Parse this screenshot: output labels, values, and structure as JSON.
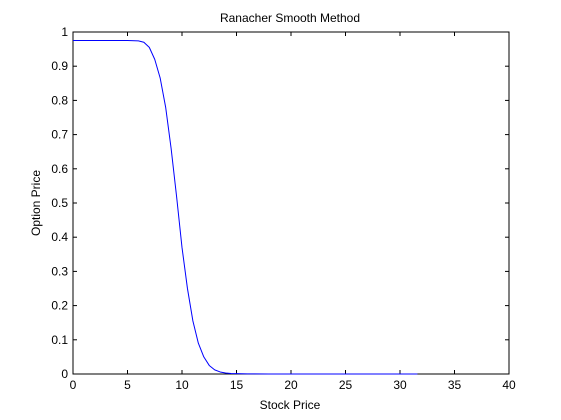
{
  "chart_data": {
    "type": "line",
    "title": "Ranacher Smooth Method",
    "xlabel": "Stock Price",
    "ylabel": "Option Price",
    "xlim": [
      0,
      40
    ],
    "ylim": [
      0,
      1
    ],
    "xticks": [
      0,
      5,
      10,
      15,
      20,
      25,
      30,
      35,
      40
    ],
    "yticks": [
      0,
      0.1,
      0.2,
      0.3,
      0.4,
      0.5,
      0.6,
      0.7,
      0.8,
      0.9,
      1
    ],
    "xtick_labels": [
      "0",
      "5",
      "10",
      "15",
      "20",
      "25",
      "30",
      "35",
      "40"
    ],
    "ytick_labels": [
      "0",
      "0.1",
      "0.2",
      "0.3",
      "0.4",
      "0.5",
      "0.6",
      "0.7",
      "0.8",
      "0.9",
      "1"
    ],
    "grid": false,
    "series": [
      {
        "color": "#0000ff",
        "x": [
          0,
          2,
          4,
          5,
          6,
          6.5,
          7,
          7.5,
          8,
          8.5,
          9,
          9.5,
          10,
          10.5,
          11,
          11.5,
          12,
          12.5,
          13,
          13.5,
          14,
          14.5,
          15,
          16,
          18,
          20,
          25,
          30,
          31.6
        ],
        "y": [
          0.975,
          0.975,
          0.975,
          0.975,
          0.974,
          0.97,
          0.955,
          0.92,
          0.865,
          0.78,
          0.66,
          0.52,
          0.37,
          0.25,
          0.155,
          0.09,
          0.05,
          0.025,
          0.012,
          0.006,
          0.003,
          0.0015,
          0.001,
          0.0005,
          0,
          0,
          0,
          0,
          0
        ]
      }
    ]
  }
}
